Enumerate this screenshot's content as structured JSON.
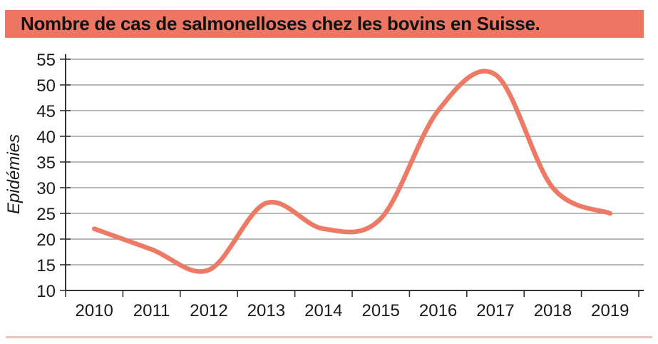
{
  "title": "Nombre de cas de salmonelloses chez les bovins en Suisse.",
  "chart_data": {
    "type": "line",
    "title": "Nombre de cas de salmonelloses chez les bovins en Suisse.",
    "categories": [
      "2010",
      "2011",
      "2012",
      "2013",
      "2014",
      "2015",
      "2016",
      "2017",
      "2018",
      "2019"
    ],
    "values": [
      22,
      18,
      14,
      27,
      22,
      24,
      45,
      52,
      30,
      25
    ],
    "xlabel": "",
    "ylabel": "Epidémies",
    "ylim": [
      10,
      55
    ],
    "ytick_step": 5,
    "yticks": [
      10,
      15,
      20,
      25,
      30,
      35,
      40,
      45,
      50,
      55
    ],
    "grid": "horizontal",
    "legend": "none",
    "smooth": true,
    "series_name": "Epidémies"
  },
  "colors": {
    "band_bg": "#EC7661",
    "line": "#EC7A64",
    "grid": "#8C8C8C",
    "axis": "#333333",
    "text": "#1a1a1a",
    "divider": "#EDC5B8",
    "background": "#FFFFFF"
  }
}
